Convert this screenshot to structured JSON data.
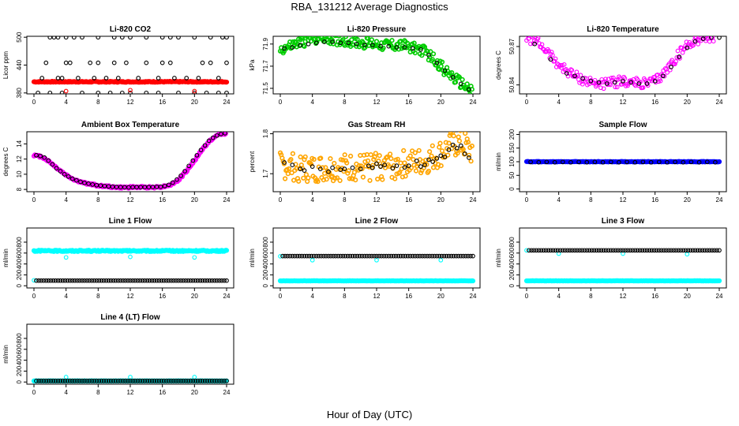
{
  "page": {
    "title": "RBA_131212  Average Diagnostics",
    "xlabel": "Hour of Day (UTC)"
  },
  "colors": {
    "black": "#000000",
    "red": "#ff0000",
    "green": "#00cc00",
    "magenta": "#ff00ff",
    "orange": "#ffa500",
    "blue": "#0000ff",
    "cyan": "#00ffff"
  },
  "chart_data": [
    {
      "type": "scatter",
      "title": "Li-820 CO2",
      "ylabel": "Licor ppm",
      "xlim": [
        0,
        24
      ],
      "ylim": [
        378,
        502
      ],
      "xticks": [
        0,
        4,
        8,
        12,
        16,
        20,
        24
      ],
      "yticks": [
        380,
        440,
        500
      ],
      "series": [
        {
          "color": "red",
          "fill": true,
          "values": {
            "from": 0,
            "to": 24,
            "step": 0.1,
            "y": 404,
            "noise": 1
          }
        },
        {
          "color": "black",
          "x": [
            2,
            2.5,
            3,
            4,
            5,
            6,
            8,
            10,
            11,
            12,
            14,
            16,
            17,
            18,
            20,
            22,
            23.5,
            24
          ],
          "y": [
            500,
            500,
            500,
            500,
            500,
            500,
            500,
            500,
            500,
            500,
            500,
            500,
            500,
            500,
            500,
            500,
            500,
            500
          ]
        },
        {
          "color": "black",
          "x": [
            1.5,
            4,
            4.5,
            7,
            8,
            10,
            11.5,
            14,
            16,
            17,
            21,
            22,
            24
          ],
          "y": [
            445,
            445,
            445,
            445,
            445,
            445,
            445,
            445,
            445,
            445,
            445,
            445,
            445
          ]
        },
        {
          "color": "black",
          "x": [
            1,
            3,
            3.5,
            5.5,
            7.5,
            9,
            10.5,
            13,
            15.5,
            17.5,
            19,
            20.5,
            23
          ],
          "y": [
            412,
            412,
            412,
            412,
            412,
            412,
            412,
            412,
            412,
            412,
            412,
            412,
            412
          ]
        },
        {
          "color": "black",
          "x": [
            0.5,
            2,
            3.5,
            6,
            8,
            9.5,
            11,
            12,
            14,
            15.5,
            18,
            20,
            21.5,
            23,
            24
          ],
          "y": [
            380,
            380,
            380,
            380,
            380,
            380,
            380,
            380,
            380,
            380,
            380,
            380,
            380,
            380,
            380
          ]
        },
        {
          "color": "red",
          "x": [
            4,
            12,
            20
          ],
          "y": [
            384,
            386,
            384
          ]
        }
      ]
    },
    {
      "type": "scatter",
      "title": "Li-820 Pressure",
      "ylabel": "kPa",
      "xlim": [
        0,
        24
      ],
      "ylim": [
        71.45,
        71.97
      ],
      "xticks": [
        0,
        4,
        8,
        12,
        16,
        20,
        24
      ],
      "yticks": [
        71.5,
        71.7,
        71.9
      ],
      "series": [
        {
          "color": "green",
          "fill": true,
          "band": 0.05,
          "x": [
            0,
            2,
            4,
            5,
            6,
            8,
            10,
            12,
            14,
            16,
            17,
            18,
            19,
            20,
            21,
            22,
            23,
            24
          ],
          "y": [
            71.85,
            71.9,
            71.95,
            71.96,
            71.95,
            71.93,
            71.91,
            71.9,
            71.89,
            71.88,
            71.86,
            71.83,
            71.77,
            71.7,
            71.63,
            71.57,
            71.52,
            71.48
          ]
        },
        {
          "color": "black",
          "x": [
            0.5,
            1.5,
            2.5,
            3.5,
            4.5,
            5.5,
            6.5,
            7.5,
            8.5,
            9.5,
            10.5,
            11.5,
            12.5,
            13.5,
            14.5,
            15.5,
            16.5,
            17.5,
            18.5,
            19.5,
            20.5,
            21.5,
            22.5,
            23.5
          ],
          "y": [
            71.86,
            71.87,
            71.89,
            71.9,
            71.91,
            71.92,
            71.92,
            71.91,
            71.91,
            71.9,
            71.89,
            71.89,
            71.88,
            71.88,
            71.87,
            71.87,
            71.86,
            71.85,
            71.8,
            71.73,
            71.66,
            71.6,
            71.54,
            71.49
          ]
        }
      ]
    },
    {
      "type": "scatter",
      "title": "Li-820 Temperature",
      "ylabel": "degrees C",
      "xlim": [
        0,
        24
      ],
      "ylim": [
        50.833,
        50.878
      ],
      "xticks": [
        0,
        4,
        8,
        12,
        16,
        20,
        24
      ],
      "yticks": [
        50.84,
        50.87
      ],
      "series": [
        {
          "color": "magenta",
          "fill": false,
          "band": 0.004,
          "x": [
            0,
            1,
            2,
            3,
            4,
            5,
            6,
            7,
            8,
            9,
            10,
            11,
            12,
            13,
            14,
            15,
            16,
            17,
            18,
            19,
            20,
            21,
            22,
            23,
            24
          ],
          "y": [
            50.877,
            50.875,
            50.87,
            50.863,
            50.856,
            50.851,
            50.847,
            50.844,
            50.842,
            50.841,
            50.841,
            50.842,
            50.843,
            50.842,
            50.841,
            50.841,
            50.843,
            50.848,
            50.856,
            50.864,
            50.871,
            50.875,
            50.877,
            50.877,
            50.877
          ]
        },
        {
          "color": "black",
          "x": [
            1,
            3,
            5,
            6,
            7,
            8,
            9,
            10,
            11,
            12,
            13,
            14,
            15,
            16,
            17,
            18,
            19,
            20,
            21,
            22,
            23,
            24
          ],
          "y": [
            50.872,
            50.86,
            50.849,
            50.847,
            50.845,
            50.843,
            50.842,
            50.841,
            50.842,
            50.843,
            50.842,
            50.841,
            50.841,
            50.843,
            50.847,
            50.854,
            50.862,
            50.869,
            50.874,
            50.876,
            50.877,
            50.877
          ]
        }
      ]
    },
    {
      "type": "scatter",
      "title": "Ambient Box Temperature",
      "ylabel": "degrees C",
      "xlim": [
        0,
        24
      ],
      "ylim": [
        7.7,
        15.6
      ],
      "xticks": [
        0,
        4,
        8,
        12,
        16,
        20,
        24
      ],
      "yticks": [
        8,
        10,
        12,
        14
      ],
      "series": [
        {
          "color": "magenta",
          "fill": true,
          "band": 0.12,
          "x": [
            0,
            1,
            2,
            3,
            4,
            5,
            6,
            7,
            8,
            9,
            10,
            11,
            12,
            13,
            14,
            15,
            16,
            17,
            18,
            19,
            20,
            21,
            22,
            23,
            24
          ],
          "y": [
            12.5,
            12.3,
            11.6,
            10.7,
            9.9,
            9.3,
            8.9,
            8.7,
            8.5,
            8.4,
            8.3,
            8.25,
            8.3,
            8.3,
            8.3,
            8.3,
            8.35,
            8.6,
            9.2,
            10.4,
            11.8,
            13.3,
            14.5,
            15.2,
            15.4
          ]
        },
        {
          "color": "black",
          "x": [
            0.3,
            0.8,
            1.3,
            1.8,
            2.3,
            2.8,
            3.3,
            3.8,
            4.3,
            4.8,
            5.3,
            5.8,
            6.3,
            6.8,
            7.3,
            7.8,
            8.3,
            8.8,
            9.3,
            9.8,
            10.3,
            10.8,
            11.3,
            11.8,
            12.3,
            12.8,
            13.3,
            13.8,
            14.3,
            14.8,
            15.3,
            15.8,
            16.3,
            16.8,
            17.3,
            17.8,
            18.3,
            18.8,
            19.3,
            19.8,
            20.3,
            20.8,
            21.3,
            21.8,
            22.3,
            22.8,
            23.3,
            23.8
          ],
          "y": [
            12.5,
            12.4,
            12.2,
            11.8,
            11.3,
            10.8,
            10.4,
            10.0,
            9.7,
            9.4,
            9.2,
            9.0,
            8.85,
            8.75,
            8.65,
            8.55,
            8.5,
            8.45,
            8.4,
            8.35,
            8.32,
            8.3,
            8.28,
            8.27,
            8.3,
            8.3,
            8.3,
            8.3,
            8.3,
            8.32,
            8.33,
            8.35,
            8.45,
            8.6,
            8.9,
            9.3,
            9.8,
            10.4,
            11.1,
            11.8,
            12.5,
            13.2,
            13.8,
            14.4,
            14.8,
            15.1,
            15.3,
            15.4
          ]
        }
      ]
    },
    {
      "type": "scatter",
      "title": "Gas Stream RH",
      "ylabel": "percent",
      "xlim": [
        0,
        24
      ],
      "ylim": [
        1.655,
        1.805
      ],
      "xticks": [
        0,
        4,
        8,
        12,
        16,
        20,
        24
      ],
      "yticks": [
        1.7,
        1.8
      ],
      "series": [
        {
          "color": "orange",
          "fill": true,
          "band": 0.035,
          "x": [
            0,
            2,
            4,
            6,
            8,
            10,
            12,
            14,
            16,
            18,
            19,
            20,
            21,
            22,
            23,
            24
          ],
          "y": [
            1.72,
            1.715,
            1.71,
            1.715,
            1.715,
            1.715,
            1.72,
            1.72,
            1.725,
            1.73,
            1.74,
            1.75,
            1.765,
            1.775,
            1.77,
            1.75
          ]
        },
        {
          "color": "black",
          "x": [
            0.5,
            1.5,
            2.5,
            3,
            4,
            5,
            6,
            6.5,
            7.5,
            8,
            9,
            10,
            11,
            11.5,
            12,
            12.5,
            13,
            14,
            14.5,
            15.5,
            16,
            17,
            17.5,
            18,
            18.5,
            19,
            19.5,
            20,
            20.5,
            21,
            21.5,
            22,
            22.5,
            23,
            23.5
          ],
          "y": [
            1.728,
            1.722,
            1.712,
            1.708,
            1.718,
            1.712,
            1.705,
            1.715,
            1.71,
            1.712,
            1.715,
            1.712,
            1.72,
            1.715,
            1.725,
            1.718,
            1.722,
            1.714,
            1.72,
            1.716,
            1.72,
            1.732,
            1.718,
            1.722,
            1.735,
            1.73,
            1.738,
            1.745,
            1.742,
            1.76,
            1.772,
            1.764,
            1.77,
            1.75,
            1.74
          ]
        }
      ]
    },
    {
      "type": "scatter",
      "title": "Sample Flow",
      "ylabel": "ml/min",
      "xlim": [
        0,
        24
      ],
      "ylim": [
        -10,
        210
      ],
      "xticks": [
        0,
        4,
        8,
        12,
        16,
        20,
        24
      ],
      "yticks": [
        0,
        50,
        100,
        150,
        200
      ],
      "series": [
        {
          "color": "blue",
          "fill": true,
          "values": {
            "from": 0,
            "to": 24,
            "step": 0.1,
            "y": 100,
            "noise": 1
          }
        },
        {
          "color": "black",
          "x": [
            0.5,
            1.5,
            2.5,
            3.5,
            4.5,
            5.5,
            6.5,
            7.5,
            8.5,
            9.5,
            10.5,
            11.5,
            12.5,
            13.5,
            14.5,
            15.5,
            16.5,
            17.5,
            18.5,
            19.5,
            20.5,
            21.5,
            22.5,
            23.5
          ],
          "y": [
            99,
            98,
            99,
            98,
            99,
            98,
            99,
            98,
            99,
            98,
            99,
            98,
            99,
            98,
            99,
            98,
            99,
            98,
            99,
            98,
            99,
            98,
            99,
            98
          ]
        }
      ]
    },
    {
      "type": "scatter",
      "title": "Line 1 Flow",
      "ylabel": "ml/min",
      "xlim": [
        0,
        24
      ],
      "ylim": [
        -40,
        1060
      ],
      "xticks": [
        0,
        4,
        8,
        12,
        16,
        20,
        24
      ],
      "yticks": [
        0,
        200,
        400,
        600,
        800
      ],
      "series": [
        {
          "color": "cyan",
          "fill": true,
          "values": {
            "from": 0,
            "to": 24,
            "step": 0.1,
            "y": 640,
            "noise": 12
          }
        },
        {
          "color": "cyan",
          "x": [
            0,
            4,
            12,
            20
          ],
          "y": [
            100,
            520,
            530,
            520
          ]
        },
        {
          "color": "black",
          "values": {
            "from": 0.3,
            "to": 24,
            "step": 0.3,
            "y": 95,
            "noise": 0
          }
        }
      ]
    },
    {
      "type": "scatter",
      "title": "Line 2 Flow",
      "ylabel": "ml/min",
      "xlim": [
        0,
        24
      ],
      "ylim": [
        -40,
        1060
      ],
      "xticks": [
        0,
        4,
        8,
        12,
        16,
        20,
        24
      ],
      "yticks": [
        0,
        200,
        400,
        600,
        800
      ],
      "series": [
        {
          "color": "cyan",
          "fill": true,
          "values": {
            "from": 0,
            "to": 24,
            "step": 0.1,
            "y": 90,
            "noise": 2
          }
        },
        {
          "color": "cyan",
          "x": [
            0,
            4,
            12,
            20
          ],
          "y": [
            540,
            470,
            470,
            470
          ]
        },
        {
          "color": "black",
          "values": {
            "from": 0.3,
            "to": 24,
            "step": 0.3,
            "y": 545,
            "noise": 0
          }
        }
      ]
    },
    {
      "type": "scatter",
      "title": "Line 3 Flow",
      "ylabel": "ml/min",
      "xlim": [
        0,
        24
      ],
      "ylim": [
        -40,
        1060
      ],
      "xticks": [
        0,
        4,
        8,
        12,
        16,
        20,
        24
      ],
      "yticks": [
        0,
        200,
        400,
        600,
        800
      ],
      "series": [
        {
          "color": "cyan",
          "fill": true,
          "values": {
            "from": 0,
            "to": 24,
            "step": 0.1,
            "y": 90,
            "noise": 2
          }
        },
        {
          "color": "cyan",
          "x": [
            0,
            4,
            12,
            20
          ],
          "y": [
            650,
            590,
            590,
            580
          ]
        },
        {
          "color": "black",
          "values": {
            "from": 0.3,
            "to": 24,
            "step": 0.3,
            "y": 650,
            "noise": 0
          }
        }
      ]
    },
    {
      "type": "scatter",
      "title": "Line 4 (LT) Flow",
      "ylabel": "ml/min",
      "xlim": [
        0,
        24
      ],
      "ylim": [
        -40,
        1060
      ],
      "xticks": [
        0,
        4,
        8,
        12,
        16,
        20,
        24
      ],
      "yticks": [
        0,
        200,
        400,
        600,
        800
      ],
      "series": [
        {
          "color": "cyan",
          "fill": true,
          "values": {
            "from": 0,
            "to": 24,
            "step": 0.1,
            "y": 20,
            "noise": 2
          }
        },
        {
          "color": "cyan",
          "x": [
            0,
            4,
            12,
            20
          ],
          "y": [
            20,
            90,
            90,
            90
          ]
        },
        {
          "color": "black",
          "values": {
            "from": 0.3,
            "to": 24,
            "step": 0.3,
            "y": 20,
            "noise": 0
          }
        }
      ]
    }
  ]
}
